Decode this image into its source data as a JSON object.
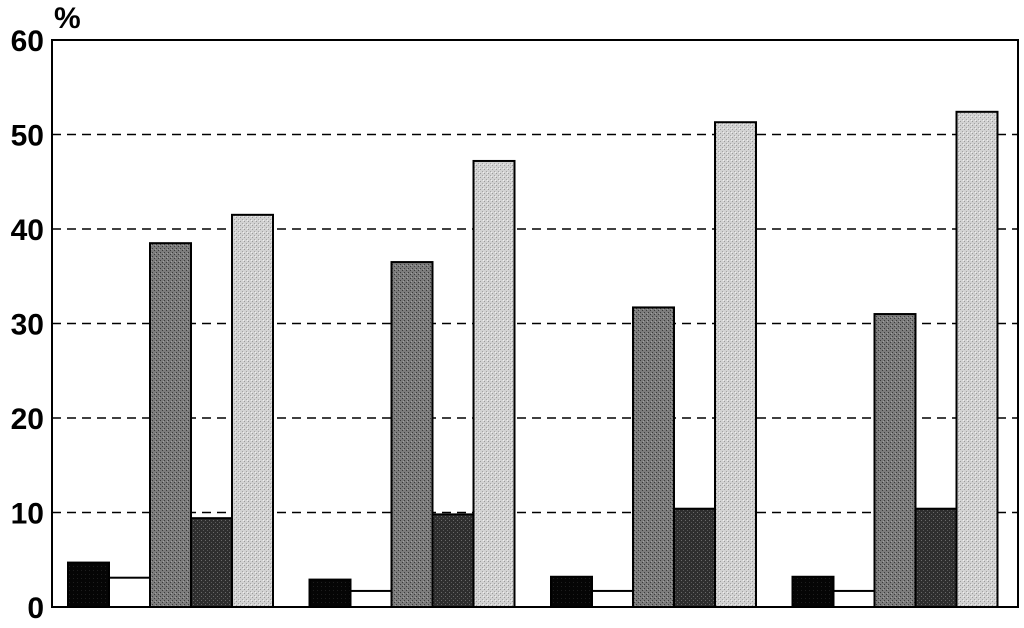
{
  "chart_data": {
    "type": "bar",
    "title": "",
    "xlabel": "",
    "ylabel": "%",
    "ylim": [
      0,
      60
    ],
    "yticks": [
      0,
      10,
      20,
      30,
      40,
      50,
      60
    ],
    "grid": "horizontal-dashed",
    "categories": [
      "",
      "",
      "",
      ""
    ],
    "series": [
      {
        "fill": "#050505",
        "pattern": "solid-black",
        "values": [
          4.7,
          2.9,
          3.2,
          3.2
        ]
      },
      {
        "fill": "#ffffff",
        "pattern": "white",
        "values": [
          3.1,
          1.7,
          1.7,
          1.7
        ]
      },
      {
        "fill": "#6f6f6f",
        "pattern": "dark-gray",
        "values": [
          38.5,
          36.5,
          31.7,
          31.0
        ]
      },
      {
        "fill": "#2e2e2e",
        "pattern": "darker-gray",
        "values": [
          9.4,
          9.8,
          10.4,
          10.4
        ]
      },
      {
        "fill": "#c9c9c9",
        "pattern": "light-gray",
        "values": [
          41.5,
          47.2,
          51.3,
          52.4
        ]
      }
    ]
  }
}
